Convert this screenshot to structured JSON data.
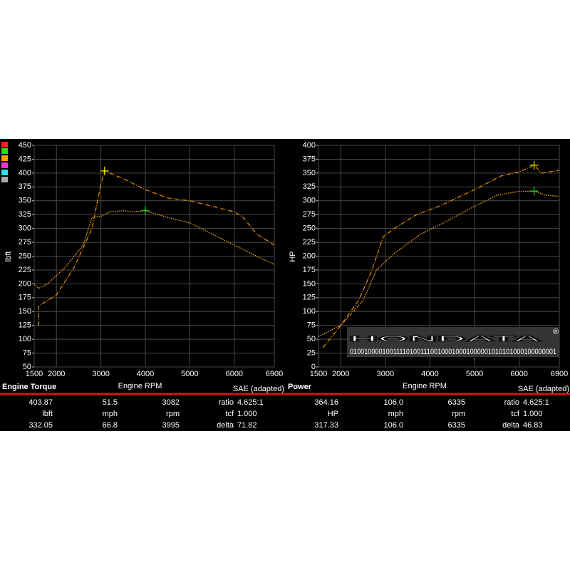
{
  "chart_data": [
    {
      "type": "line",
      "title": "Engine Torque",
      "x_label": "Engine RPM",
      "y_label": "lbft",
      "note": "SAE (adapted)",
      "xlim": [
        1500,
        6900
      ],
      "xticks": [
        1500,
        2000,
        3000,
        4000,
        5000,
        6000,
        6900
      ],
      "ylim": [
        50,
        450
      ],
      "yticks": [
        50,
        75,
        100,
        125,
        150,
        175,
        200,
        225,
        250,
        275,
        300,
        325,
        350,
        375,
        400,
        425,
        450
      ],
      "grid": true,
      "series": [
        {
          "color": "#e08a00",
          "dash": "6 2 1 2",
          "x": [
            1600,
            1600,
            1700,
            2000,
            2400,
            2800,
            3000,
            3082,
            3500,
            4000,
            4500,
            5000,
            5500,
            6000,
            6200,
            6500,
            6900
          ],
          "values": [
            125,
            160,
            165,
            180,
            230,
            300,
            380,
            403.87,
            390,
            370,
            355,
            350,
            340,
            330,
            320,
            290,
            270
          ]
        },
        {
          "color": "#ffa520",
          "dash": "1.5 1.5",
          "x": [
            1500,
            1600,
            1800,
            2200,
            2600,
            2800,
            3000,
            3200,
            3500,
            3800,
            3995,
            4500,
            5000,
            5500,
            6000,
            6500,
            6900
          ],
          "values": [
            200,
            192,
            200,
            230,
            270,
            320,
            322,
            330,
            332,
            330,
            332.05,
            320,
            310,
            290,
            270,
            250,
            235
          ]
        }
      ],
      "cursors": [
        {
          "x": 3082,
          "y": 403.87,
          "color": "#e8e800"
        },
        {
          "x": 3995,
          "y": 332.05,
          "color": "#22dd22"
        }
      ],
      "readout": [
        [
          "403.87",
          "51.5",
          "3082",
          "ratio",
          "4.625:1"
        ],
        [
          "lbft",
          "mph",
          "rpm",
          "tcf",
          "1.000"
        ],
        [
          "332.05",
          "66.8",
          "3995",
          "delta",
          "71.82"
        ]
      ]
    },
    {
      "type": "line",
      "title": "Power",
      "x_label": "Engine RPM",
      "y_label": "HP",
      "note": "SAE (adapted)",
      "xlim": [
        1500,
        6900
      ],
      "xticks": [
        1500,
        2000,
        3000,
        4000,
        5000,
        6000,
        6900
      ],
      "ylim": [
        0,
        400
      ],
      "yticks": [
        0,
        25,
        50,
        75,
        100,
        125,
        150,
        175,
        200,
        225,
        250,
        275,
        300,
        325,
        350,
        375,
        400
      ],
      "grid": true,
      "series": [
        {
          "color": "#e08a00",
          "dash": "6 2 1 2",
          "x": [
            1600,
            2000,
            2400,
            2700,
            2950,
            3200,
            3700,
            4200,
            5000,
            5600,
            6000,
            6335,
            6500,
            6900
          ],
          "values": [
            35,
            75,
            120,
            175,
            235,
            250,
            275,
            290,
            320,
            345,
            352,
            364.16,
            350,
            355
          ]
        },
        {
          "color": "#ffa520",
          "dash": "1.5 1.5",
          "x": [
            1500,
            2000,
            2500,
            2800,
            3200,
            3800,
            4300,
            5000,
            5500,
            6000,
            6335,
            6600,
            6900
          ],
          "values": [
            55,
            75,
            120,
            175,
            205,
            240,
            260,
            290,
            310,
            317,
            317.33,
            310,
            308
          ]
        }
      ],
      "cursors": [
        {
          "x": 6335,
          "y": 364.16,
          "color": "#e8e800"
        },
        {
          "x": 6335,
          "y": 317.33,
          "color": "#22dd22"
        }
      ],
      "readout": [
        [
          "364.16",
          "106.0",
          "6335",
          "ratio",
          "4.625:1"
        ],
        [
          "HP",
          "mph",
          "rpm",
          "tcf",
          "1.000"
        ],
        [
          "317.33",
          "106.0",
          "6335",
          "delta",
          "46.83"
        ]
      ],
      "watermark": {
        "text": "HONDATA",
        "mark": "®",
        "code": "0100100001001111010011100100010001000001010101000100000001"
      }
    }
  ]
}
